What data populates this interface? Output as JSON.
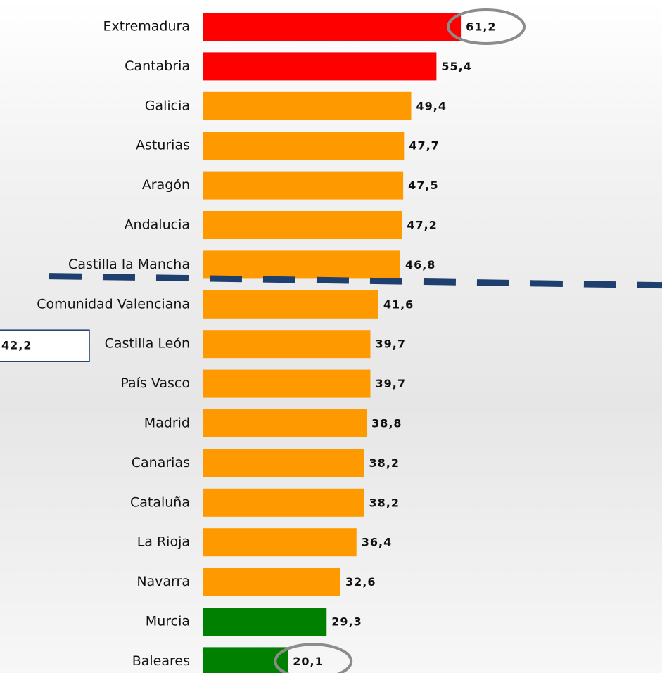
{
  "chart_data": {
    "type": "bar",
    "orientation": "horizontal",
    "categories": [
      "Extremadura",
      "Cantabria",
      "Galicia",
      "Asturias",
      "Aragón",
      "Andalucia",
      "Castilla la Mancha",
      "Comunidad Valenciana",
      "Castilla León",
      "País Vasco",
      "Madrid",
      "Canarias",
      "Cataluña",
      "La Rioja",
      "Navarra",
      "Murcia",
      "Baleares"
    ],
    "values": [
      61.2,
      55.4,
      49.4,
      47.7,
      47.5,
      47.2,
      46.8,
      41.6,
      39.7,
      39.7,
      38.8,
      38.2,
      38.2,
      36.4,
      32.6,
      29.3,
      20.1
    ],
    "value_labels": [
      "61,2",
      "55,4",
      "49,4",
      "47,7",
      "47,5",
      "47,2",
      "46,8",
      "41,6",
      "39,7",
      "39,7",
      "38,8",
      "38,2",
      "38,2",
      "36,4",
      "32,6",
      "29,3",
      "20,1"
    ],
    "colors": [
      "#ff0000",
      "#ff0000",
      "#ff9900",
      "#ff9900",
      "#ff9900",
      "#ff9900",
      "#ff9900",
      "#ff9900",
      "#ff9900",
      "#ff9900",
      "#ff9900",
      "#ff9900",
      "#ff9900",
      "#ff9900",
      "#ff9900",
      "#008000",
      "#008000"
    ],
    "xlim": [
      0,
      109
    ],
    "reference_line": {
      "value": 42.2,
      "label": "42,2",
      "color": "#1f3f6e"
    }
  }
}
